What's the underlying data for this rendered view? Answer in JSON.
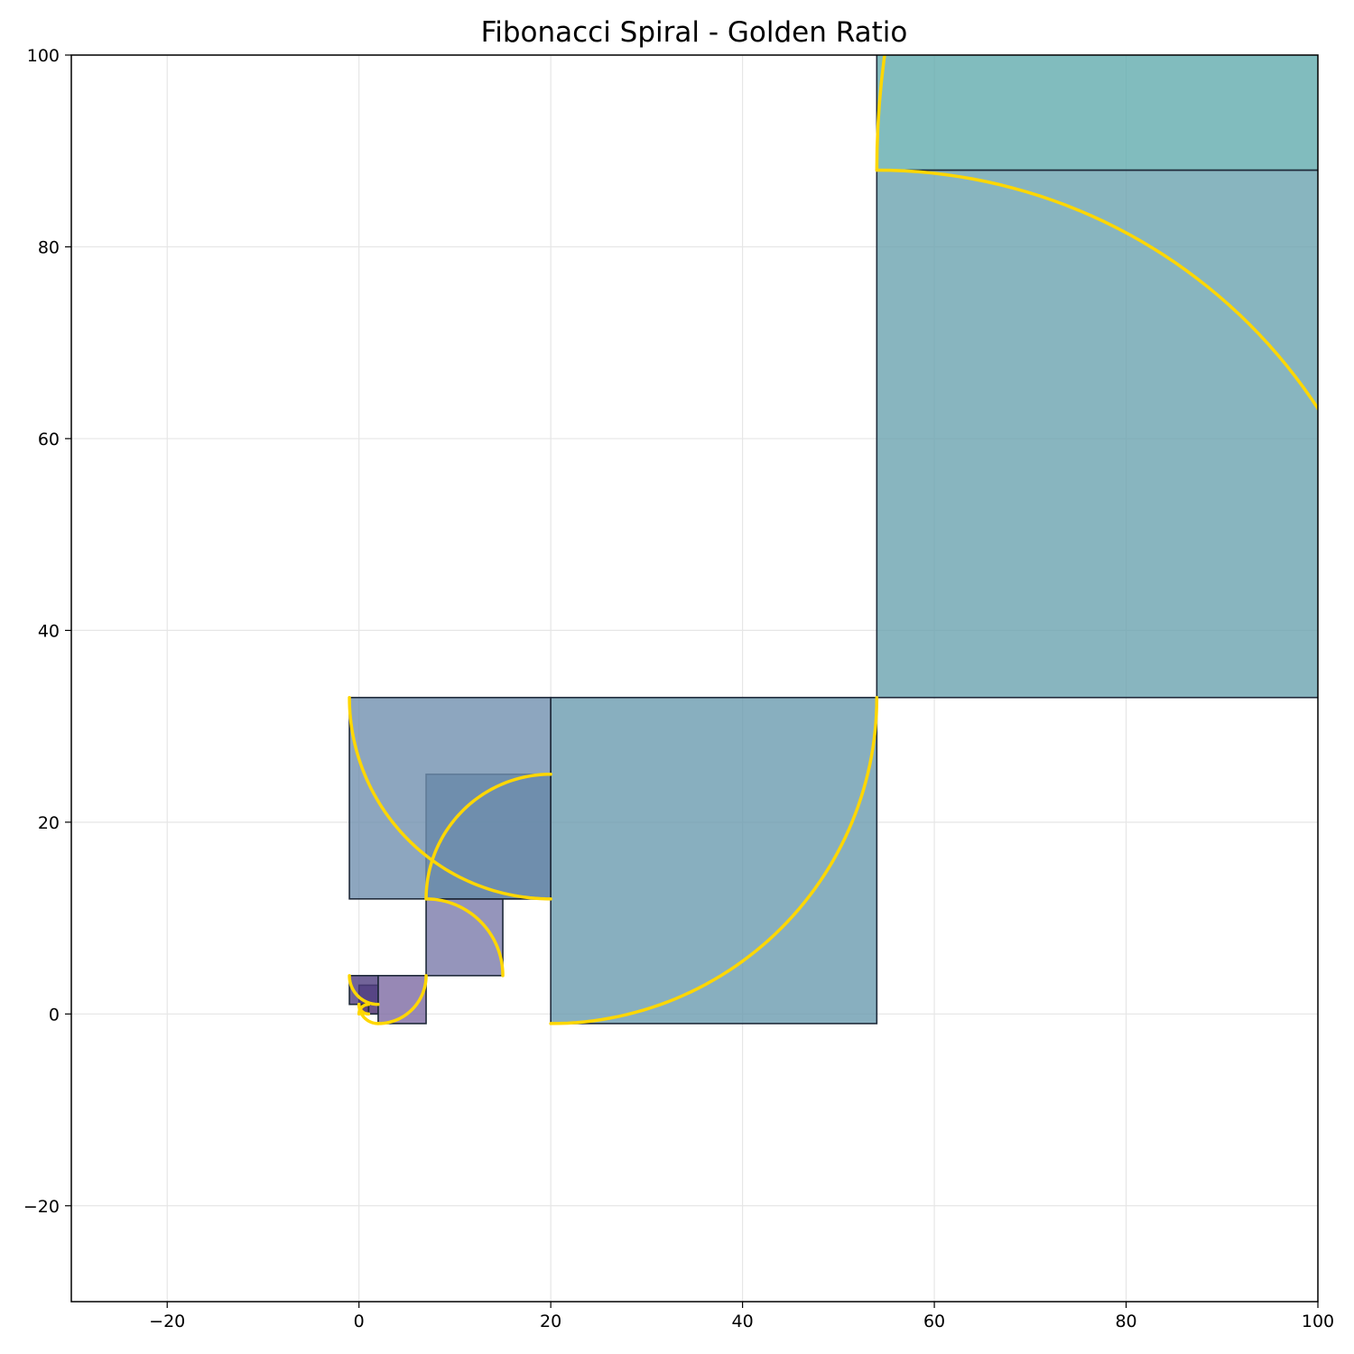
{
  "chart_data": {
    "type": "area",
    "title": "Fibonacci Spiral - Golden Ratio",
    "xlabel": "",
    "ylabel": "",
    "xlim": [
      -30,
      100
    ],
    "ylim": [
      -30,
      100
    ],
    "xticks": [
      -20,
      0,
      20,
      40,
      60,
      80,
      100
    ],
    "yticks": [
      -20,
      0,
      20,
      40,
      60,
      80,
      100
    ],
    "xtick_labels": [
      "−20",
      "0",
      "20",
      "40",
      "60",
      "80",
      "100"
    ],
    "ytick_labels": [
      "−20",
      "0",
      "20",
      "40",
      "60",
      "80",
      "100"
    ],
    "grid": true,
    "colors": {
      "spiral": "#ffd700",
      "square_edge": "#1f2a3a",
      "grid": "#e6e6e6"
    },
    "squares": [
      {
        "x": 0,
        "y": 0,
        "size": 1,
        "color": "#3c1a5c"
      },
      {
        "x": 1,
        "y": 0,
        "size": 1,
        "color": "#4a2a6e"
      },
      {
        "x": 0,
        "y": 1,
        "size": 2,
        "color": "#5a3f80"
      },
      {
        "x": -1,
        "y": 1,
        "size": 3,
        "color": "#4f3d7f"
      },
      {
        "x": 2,
        "y": -1,
        "size": 5,
        "color": "#7d6aa3"
      },
      {
        "x": 7,
        "y": 4,
        "size": 8,
        "color": "#7b7aaa"
      },
      {
        "x": 7,
        "y": 12,
        "size": 13,
        "color": "#44698f"
      },
      {
        "x": -1,
        "y": 12,
        "size": 21,
        "color": "#7090af"
      },
      {
        "x": 20,
        "y": -1,
        "size": 34,
        "color": "#6a9baf"
      },
      {
        "x": 54,
        "y": 33,
        "size": 55,
        "color": "#6aa3af"
      },
      {
        "x": 54,
        "y": 88,
        "size": 89,
        "color": "#62abae"
      }
    ],
    "spiral_arcs": [
      {
        "cx": 1,
        "cy": 0,
        "r": 1,
        "start_deg": 90,
        "end_deg": 180
      },
      {
        "cx": 1,
        "cy": 1,
        "r": 1,
        "start_deg": 180,
        "end_deg": 270
      },
      {
        "cx": 2,
        "cy": 1,
        "r": 2,
        "start_deg": 180,
        "end_deg": 270
      },
      {
        "cx": 2,
        "cy": 4,
        "r": 3,
        "start_deg": 180,
        "end_deg": 270
      },
      {
        "cx": 2,
        "cy": 4,
        "r": 5,
        "start_deg": 270,
        "end_deg": 360
      },
      {
        "cx": 7,
        "cy": 4,
        "r": 8,
        "start_deg": 0,
        "end_deg": 90
      },
      {
        "cx": 20,
        "cy": 12,
        "r": 13,
        "start_deg": 90,
        "end_deg": 180
      },
      {
        "cx": 20,
        "cy": 33,
        "r": 21,
        "start_deg": 180,
        "end_deg": 270
      },
      {
        "cx": 20,
        "cy": 33,
        "r": 34,
        "start_deg": 270,
        "end_deg": 360
      },
      {
        "cx": 54,
        "cy": 33,
        "r": 55,
        "start_deg": 0,
        "end_deg": 90
      },
      {
        "cx": 143,
        "cy": 88,
        "r": 89,
        "start_deg": 90,
        "end_deg": 180
      }
    ]
  }
}
